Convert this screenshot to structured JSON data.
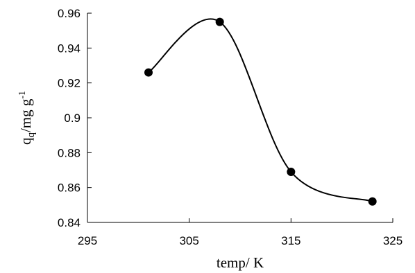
{
  "chart_data": {
    "type": "scatter",
    "title": "",
    "xlabel": "temp/ K",
    "ylabel": {
      "base": "q",
      "subscript": "q",
      "mid": "/mg g",
      "superscript": "-1"
    },
    "xlim": [
      295,
      325
    ],
    "ylim": [
      0.84,
      0.96
    ],
    "x_ticks": [
      295,
      305,
      315,
      325
    ],
    "x_tick_labels": [
      "295",
      "305",
      "315",
      "325"
    ],
    "y_ticks": [
      0.84,
      0.86,
      0.88,
      0.9,
      0.92,
      0.94,
      0.96
    ],
    "y_tick_labels": [
      "0.84",
      "0.86",
      "0.88",
      "0.9",
      "0.92",
      "0.94",
      "0.96"
    ],
    "grid": false,
    "legend": "none",
    "smooth_line": true,
    "series": [
      {
        "x": [
          301,
          308,
          315,
          323
        ],
        "y": [
          0.926,
          0.955,
          0.869,
          0.852
        ],
        "color": "#000000",
        "marker": "circle"
      }
    ]
  }
}
